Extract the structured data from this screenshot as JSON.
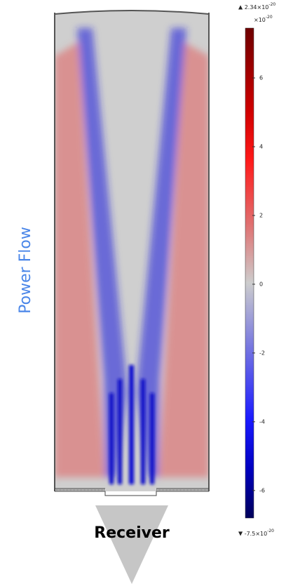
{
  "chart_data": {
    "type": "colorbar",
    "max_label": [
      "2.34×10",
      "-20"
    ],
    "min_label": [
      "-7.5×10",
      "-20"
    ],
    "scale_label": [
      "×10",
      "-20"
    ],
    "ylim": [
      -6.8,
      7.45
    ],
    "yticks": [
      6,
      4,
      2,
      0,
      -2,
      -4,
      -6
    ],
    "side_label": "Power Flow",
    "bottom_label": "Receiver"
  }
}
